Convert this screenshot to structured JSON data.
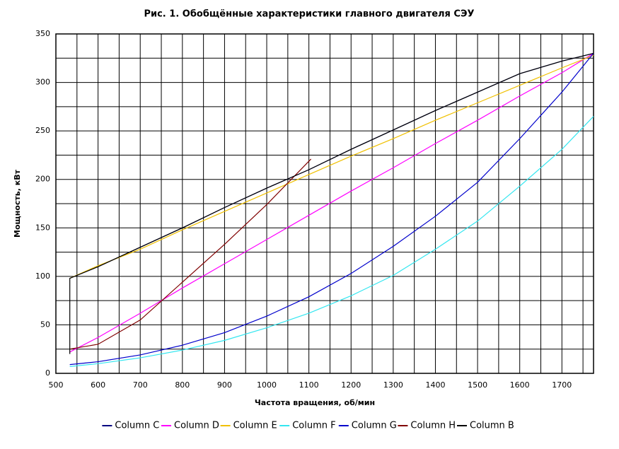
{
  "chart_data": {
    "type": "line",
    "title": "Рис. 1. Обобщённые характеристики главного двигателя СЭУ",
    "x_label": "Частота вращения, об/мин",
    "y_label": "Мощность, кВт",
    "xlim": [
      500,
      1775
    ],
    "ylim": [
      0,
      350
    ],
    "xticks": [
      500,
      600,
      700,
      800,
      900,
      1000,
      1100,
      1200,
      1300,
      1400,
      1500,
      1600,
      1700
    ],
    "yticks": [
      0,
      50,
      100,
      150,
      200,
      250,
      300,
      350
    ],
    "x_minor_grid": [
      550,
      650,
      750,
      850,
      950,
      1050,
      1150,
      1250,
      1350,
      1450,
      1550,
      1650,
      1750
    ],
    "y_minor_grid": [
      25,
      75,
      125,
      175,
      225,
      275,
      325
    ],
    "grid": true,
    "legend": "bottom",
    "series": [
      {
        "name": "Column C",
        "color": "#000080",
        "x": [
          533,
          600,
          700,
          800,
          900,
          1000,
          1100,
          1200,
          1300,
          1400,
          1500,
          1600,
          1700,
          1775
        ],
        "values": [
          98,
          110,
          130,
          150,
          171,
          191,
          210,
          231,
          251,
          271,
          290,
          309,
          322,
          330
        ]
      },
      {
        "name": "Column D",
        "color": "#ff00ff",
        "x": [
          533,
          600,
          700,
          800,
          900,
          1000,
          1100,
          1200,
          1300,
          1400,
          1500,
          1600,
          1700,
          1775
        ],
        "values": [
          22,
          37,
          62,
          88,
          113,
          138,
          163,
          188,
          212,
          237,
          261,
          286,
          310,
          330
        ]
      },
      {
        "name": "Column E",
        "color": "#f0c000",
        "x": [
          533,
          600,
          700,
          800,
          900,
          1000,
          1100,
          1200,
          1300,
          1400,
          1500,
          1600,
          1700,
          1775
        ],
        "values": [
          98,
          111,
          128,
          148,
          167,
          186,
          205,
          224,
          242,
          261,
          279,
          297,
          315,
          328
        ]
      },
      {
        "name": "Column F",
        "color": "#33e6f0",
        "x": [
          533,
          600,
          700,
          800,
          900,
          1000,
          1100,
          1200,
          1300,
          1400,
          1500,
          1600,
          1700,
          1775
        ],
        "values": [
          7,
          10,
          16,
          24,
          34,
          47,
          62,
          80,
          101,
          128,
          157,
          193,
          231,
          265
        ]
      },
      {
        "name": "Column G",
        "color": "#0000cc",
        "x": [
          533,
          600,
          700,
          800,
          900,
          1000,
          1100,
          1200,
          1300,
          1400,
          1500,
          1600,
          1700,
          1775
        ],
        "values": [
          9,
          12,
          19,
          29,
          42,
          59,
          79,
          103,
          131,
          162,
          197,
          242,
          290,
          330
        ]
      },
      {
        "name": "Column H",
        "color": "#800000",
        "x": [
          533,
          600,
          700,
          800,
          900,
          1000,
          1105
        ],
        "values": [
          25,
          30,
          55,
          94,
          133,
          174,
          221
        ]
      },
      {
        "name": "Column B",
        "color": "#000000",
        "x": [
          533,
          533,
          600,
          700,
          800,
          900,
          1000,
          1100,
          1200,
          1300,
          1400,
          1500,
          1600,
          1700,
          1775
        ],
        "values": [
          20,
          98,
          110,
          130,
          150,
          171,
          191,
          210,
          231,
          251,
          271,
          290,
          309,
          322,
          330
        ]
      }
    ]
  }
}
